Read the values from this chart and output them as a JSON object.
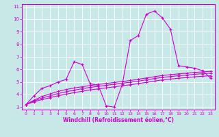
{
  "xlabel": "Windchill (Refroidissement éolien,°C)",
  "background_color": "#c8e8e8",
  "line_color": "#cc00cc",
  "xlim": [
    -0.5,
    23.5
  ],
  "ylim": [
    2.8,
    11.2
  ],
  "yticks": [
    3,
    4,
    5,
    6,
    7,
    8,
    9,
    10,
    11
  ],
  "xticks": [
    0,
    1,
    2,
    3,
    4,
    5,
    6,
    7,
    8,
    9,
    10,
    11,
    12,
    13,
    14,
    15,
    16,
    17,
    18,
    19,
    20,
    21,
    22,
    23
  ],
  "curve1_x": [
    0,
    1,
    2,
    3,
    4,
    5,
    6,
    7,
    8,
    9,
    10,
    11,
    12,
    13,
    14,
    15,
    16,
    17,
    18,
    19,
    20,
    21,
    22,
    23
  ],
  "curve1_y": [
    3.2,
    3.9,
    4.5,
    4.7,
    5.0,
    5.2,
    6.6,
    6.4,
    4.85,
    4.75,
    3.1,
    3.0,
    4.8,
    8.3,
    8.7,
    10.4,
    10.65,
    10.1,
    9.2,
    6.3,
    6.2,
    6.1,
    5.9,
    5.3
  ],
  "curve2_x": [
    0,
    1,
    2,
    3,
    4,
    5,
    6,
    7,
    8,
    9,
    10,
    11,
    12,
    13,
    14,
    15,
    16,
    17,
    18,
    19,
    20,
    21,
    22,
    23
  ],
  "curve2_y": [
    3.2,
    3.55,
    3.85,
    4.05,
    4.25,
    4.4,
    4.52,
    4.62,
    4.72,
    4.8,
    4.88,
    4.96,
    5.04,
    5.12,
    5.22,
    5.32,
    5.42,
    5.52,
    5.58,
    5.65,
    5.7,
    5.76,
    5.8,
    5.85
  ],
  "curve3_x": [
    0,
    1,
    2,
    3,
    4,
    5,
    6,
    7,
    8,
    9,
    10,
    11,
    12,
    13,
    14,
    15,
    16,
    17,
    18,
    19,
    20,
    21,
    22,
    23
  ],
  "curve3_y": [
    3.2,
    3.48,
    3.72,
    3.9,
    4.08,
    4.22,
    4.35,
    4.46,
    4.57,
    4.65,
    4.73,
    4.82,
    4.9,
    4.98,
    5.07,
    5.17,
    5.27,
    5.37,
    5.43,
    5.5,
    5.55,
    5.61,
    5.66,
    5.7
  ],
  "curve4_x": [
    0,
    1,
    2,
    3,
    4,
    5,
    6,
    7,
    8,
    9,
    10,
    11,
    12,
    13,
    14,
    15,
    16,
    17,
    18,
    19,
    20,
    21,
    22,
    23
  ],
  "curve4_y": [
    3.2,
    3.42,
    3.6,
    3.75,
    3.9,
    4.03,
    4.15,
    4.26,
    4.37,
    4.45,
    4.53,
    4.62,
    4.7,
    4.78,
    4.87,
    4.97,
    5.07,
    5.17,
    5.23,
    5.3,
    5.35,
    5.41,
    5.46,
    5.5
  ]
}
